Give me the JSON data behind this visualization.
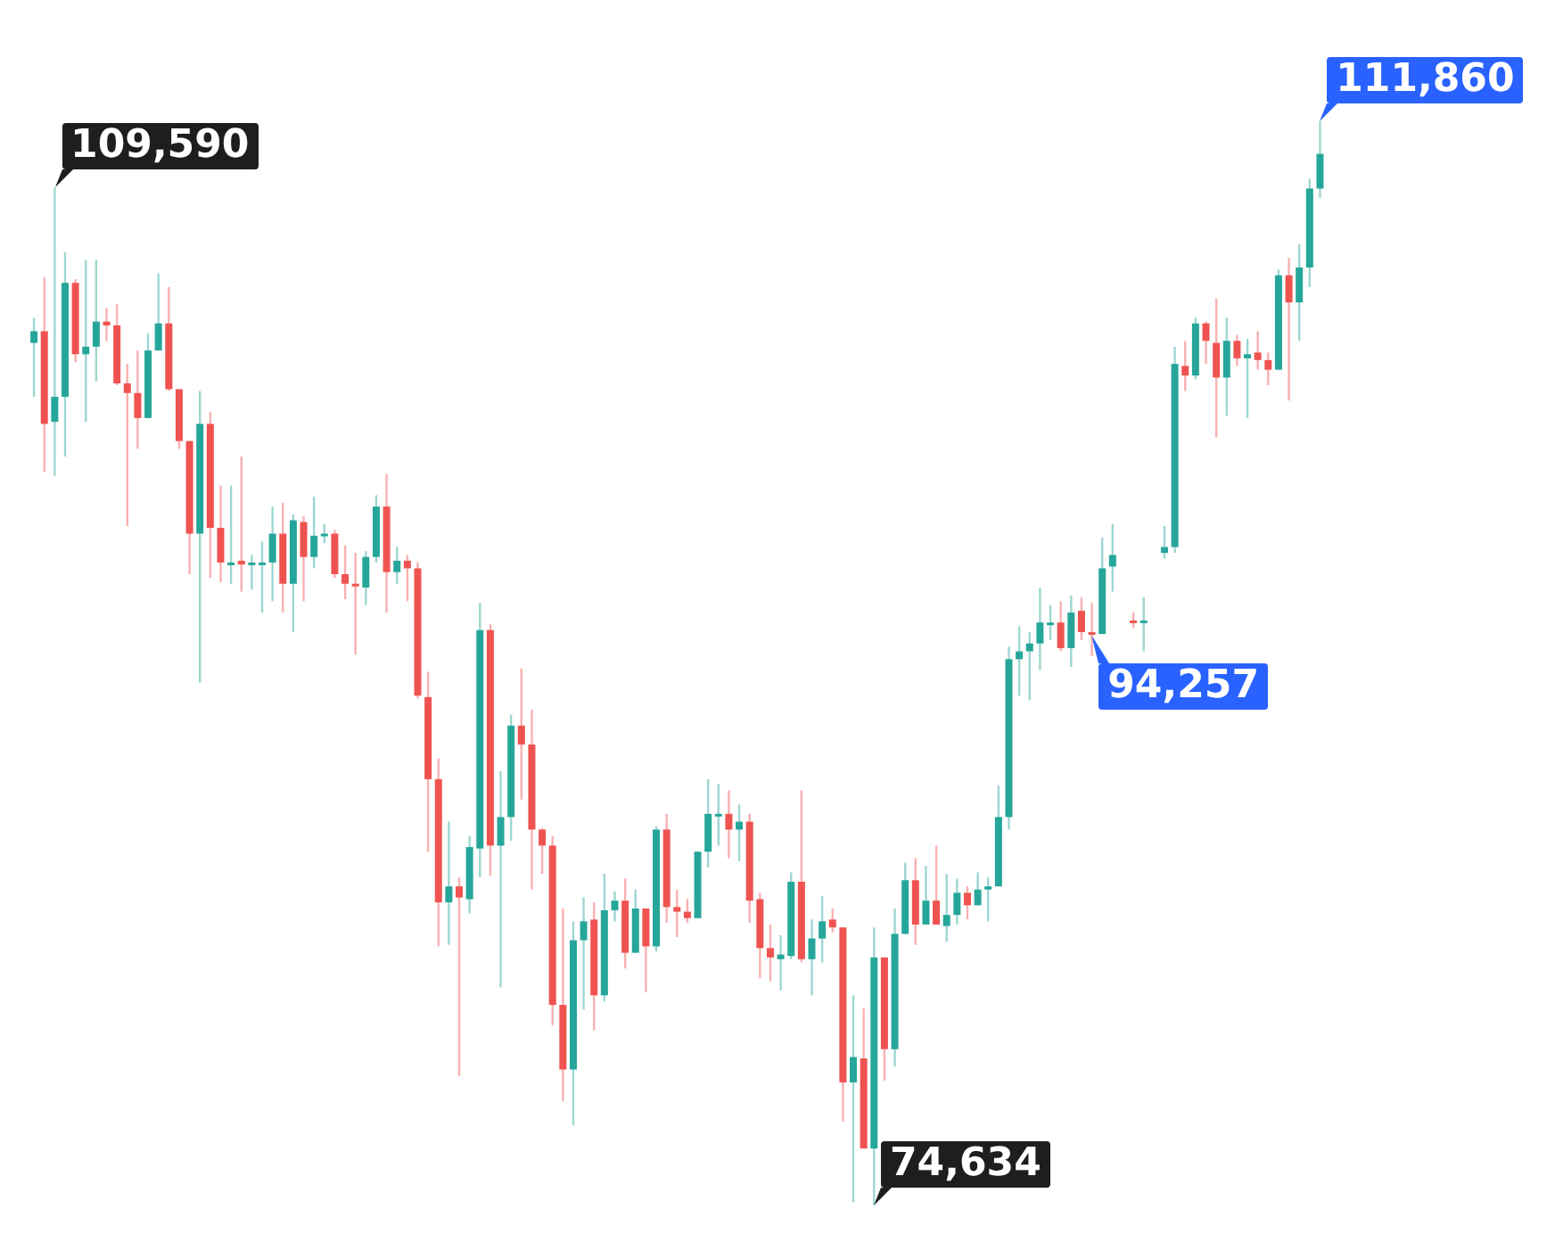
{
  "chart_data": {
    "type": "candlestick",
    "tick_labels": false,
    "categories": [
      null,
      null,
      null,
      null,
      null,
      null,
      null,
      null,
      null,
      null,
      null,
      null,
      null,
      null,
      null,
      null,
      null,
      null,
      null,
      null,
      null,
      null,
      null,
      null,
      null,
      null,
      null,
      null,
      null,
      null,
      null,
      null,
      null,
      null,
      null,
      null,
      null,
      null,
      null,
      null,
      null,
      null,
      null,
      null,
      null,
      null,
      null,
      null,
      null,
      null,
      null,
      null,
      null,
      null,
      null,
      null,
      null,
      null,
      null,
      null,
      null,
      null,
      null,
      null,
      null,
      null,
      null,
      null,
      null,
      null,
      null,
      null,
      null,
      null,
      null,
      null,
      null,
      null,
      null,
      null,
      null,
      null,
      null,
      null,
      null,
      null,
      null,
      null,
      null,
      null,
      null,
      null,
      null,
      null,
      null,
      null,
      null,
      null,
      null,
      null,
      null,
      null,
      null,
      null,
      null,
      null,
      null,
      null,
      null,
      null,
      null,
      null,
      null,
      null,
      null,
      null,
      null,
      null,
      null,
      null,
      null,
      null,
      null,
      null,
      null
    ],
    "ohlc": [
      [
        104250,
        105110,
        102400,
        104650
      ],
      [
        104650,
        106500,
        99820,
        101470
      ],
      [
        101540,
        109590,
        99690,
        102400
      ],
      [
        102400,
        107360,
        100350,
        106310
      ],
      [
        106310,
        106440,
        103590,
        103860
      ],
      [
        103860,
        107100,
        101540,
        104120
      ],
      [
        104120,
        107100,
        102930,
        104980
      ],
      [
        104980,
        105450,
        104320,
        104850
      ],
      [
        104850,
        105580,
        102800,
        102860
      ],
      [
        102860,
        103530,
        97960,
        102530
      ],
      [
        102530,
        103990,
        100610,
        101670
      ],
      [
        101670,
        104580,
        101670,
        103990
      ],
      [
        103990,
        106640,
        103990,
        104920
      ],
      [
        104920,
        106170,
        102600,
        102660
      ],
      [
        102660,
        102660,
        100610,
        100880
      ],
      [
        100880,
        100880,
        96310,
        97700
      ],
      [
        97700,
        102600,
        92580,
        101470
      ],
      [
        101470,
        101870,
        96180,
        97900
      ],
      [
        97900,
        99350,
        96040,
        96710
      ],
      [
        96640,
        99350,
        95980,
        96710
      ],
      [
        96770,
        100350,
        95710,
        96640
      ],
      [
        96640,
        96970,
        95780,
        96710
      ],
      [
        96640,
        97430,
        94990,
        96710
      ],
      [
        96710,
        98630,
        95380,
        97700
      ],
      [
        97700,
        98760,
        94990,
        95980
      ],
      [
        95980,
        98360,
        94320,
        98160
      ],
      [
        98100,
        98300,
        95380,
        96900
      ],
      [
        96900,
        98960,
        96510,
        97630
      ],
      [
        97630,
        98030,
        97370,
        97700
      ],
      [
        97700,
        97830,
        96180,
        96310
      ],
      [
        96310,
        97300,
        95450,
        95980
      ],
      [
        95980,
        97040,
        93550,
        95910
      ],
      [
        95850,
        97100,
        95250,
        96900
      ],
      [
        96900,
        99020,
        96710,
        98630
      ],
      [
        98630,
        99750,
        94990,
        96380
      ],
      [
        96380,
        97240,
        95980,
        96770
      ],
      [
        96770,
        96970,
        95380,
        96510
      ],
      [
        96510,
        96710,
        92040,
        92140
      ],
      [
        92090,
        92960,
        86780,
        89270
      ],
      [
        89270,
        89980,
        83530,
        85040
      ],
      [
        85040,
        87810,
        83580,
        85590
      ],
      [
        85590,
        85910,
        79080,
        85210
      ],
      [
        85150,
        87320,
        84660,
        86940
      ],
      [
        86890,
        95320,
        85910,
        94390
      ],
      [
        94390,
        94590,
        85960,
        86990
      ],
      [
        86990,
        89540,
        82120,
        87970
      ],
      [
        87970,
        91490,
        87160,
        91110
      ],
      [
        91110,
        93070,
        88570,
        90460
      ],
      [
        90460,
        91660,
        85480,
        87540
      ],
      [
        87540,
        87590,
        86020,
        86990
      ],
      [
        86990,
        87320,
        80820,
        81520
      ],
      [
        81520,
        84830,
        78210,
        79300
      ],
      [
        79300,
        84390,
        77400,
        83740
      ],
      [
        83740,
        85210,
        81360,
        84390
      ],
      [
        84450,
        85040,
        80650,
        81850
      ],
      [
        81850,
        86020,
        81630,
        84770
      ],
      [
        84770,
        85420,
        84390,
        85100
      ],
      [
        85100,
        85860,
        82770,
        83310
      ],
      [
        83310,
        85480,
        83310,
        84830
      ],
      [
        84830,
        84830,
        81950,
        83530
      ],
      [
        83530,
        87650,
        83360,
        87540
      ],
      [
        87540,
        88080,
        84340,
        84880
      ],
      [
        84880,
        85480,
        83850,
        84720
      ],
      [
        84720,
        85150,
        84340,
        84500
      ],
      [
        84500,
        86780,
        84500,
        86780
      ],
      [
        86780,
        89270,
        86240,
        88080
      ],
      [
        88020,
        89110,
        86990,
        88080
      ],
      [
        88080,
        88890,
        86560,
        87540
      ],
      [
        87540,
        88400,
        86450,
        87810
      ],
      [
        87810,
        88080,
        84340,
        85100
      ],
      [
        85150,
        85370,
        82440,
        83470
      ],
      [
        83470,
        84280,
        82330,
        83150
      ],
      [
        83090,
        83910,
        82010,
        83250
      ],
      [
        83200,
        86070,
        83090,
        85750
      ],
      [
        85750,
        88890,
        82980,
        83090
      ],
      [
        83090,
        84450,
        81850,
        83800
      ],
      [
        83800,
        85260,
        82980,
        84390
      ],
      [
        84450,
        84830,
        84010,
        84180
      ],
      [
        84180,
        84180,
        77510,
        78860
      ],
      [
        78860,
        81850,
        74750,
        79730
      ],
      [
        79680,
        81410,
        76590,
        76590
      ],
      [
        76590,
        84180,
        74634,
        83150
      ],
      [
        83150,
        83150,
        78920,
        80000
      ],
      [
        80000,
        84830,
        79410,
        83960
      ],
      [
        83960,
        86400,
        83960,
        85800
      ],
      [
        85800,
        86560,
        83580,
        84280
      ],
      [
        84280,
        86290,
        84280,
        85100
      ],
      [
        85100,
        86990,
        84280,
        84280
      ],
      [
        84230,
        86020,
        83690,
        84610
      ],
      [
        84610,
        85860,
        84280,
        85370
      ],
      [
        85370,
        85590,
        84450,
        84940
      ],
      [
        84940,
        86070,
        84940,
        85480
      ],
      [
        85480,
        85910,
        84390,
        85590
      ],
      [
        85590,
        89050,
        85590,
        87970
      ],
      [
        87970,
        93820,
        87540,
        93390
      ],
      [
        93390,
        94520,
        92140,
        93660
      ],
      [
        93660,
        94320,
        91980,
        93930
      ],
      [
        93930,
        95850,
        93010,
        94650
      ],
      [
        94590,
        95250,
        94040,
        94650
      ],
      [
        94650,
        95380,
        93660,
        93770
      ],
      [
        93770,
        95580,
        93120,
        94990
      ],
      [
        95050,
        95520,
        94040,
        94320
      ],
      [
        94320,
        95320,
        93500,
        94257
      ],
      [
        94257,
        97570,
        94257,
        96510
      ],
      [
        96570,
        98030,
        95710,
        96970
      ],
      null,
      [
        94720,
        94990,
        94460,
        94650
      ],
      [
        94650,
        95520,
        93660,
        94720
      ],
      null,
      [
        97040,
        97960,
        96840,
        97240
      ],
      [
        97240,
        104120,
        97040,
        103530
      ],
      [
        103460,
        104320,
        102600,
        103130
      ],
      [
        103130,
        105110,
        103000,
        104920
      ],
      [
        104920,
        104980,
        103530,
        104320
      ],
      [
        104250,
        105780,
        101010,
        103060
      ],
      [
        103060,
        105110,
        101740,
        104320
      ],
      [
        104320,
        104520,
        103460,
        103720
      ],
      [
        103720,
        104390,
        101670,
        103860
      ],
      [
        103920,
        104650,
        103330,
        103660
      ],
      [
        103660,
        103920,
        102800,
        103330
      ],
      [
        103330,
        106770,
        103330,
        106570
      ],
      [
        106570,
        107170,
        102270,
        105640
      ],
      [
        105640,
        107630,
        104320,
        106840
      ],
      [
        106840,
        109880,
        106170,
        109550
      ],
      [
        109550,
        111860,
        109220,
        110740
      ]
    ],
    "annotations": [
      "109,590",
      "74,634",
      "111,860",
      "94,257"
    ]
  }
}
